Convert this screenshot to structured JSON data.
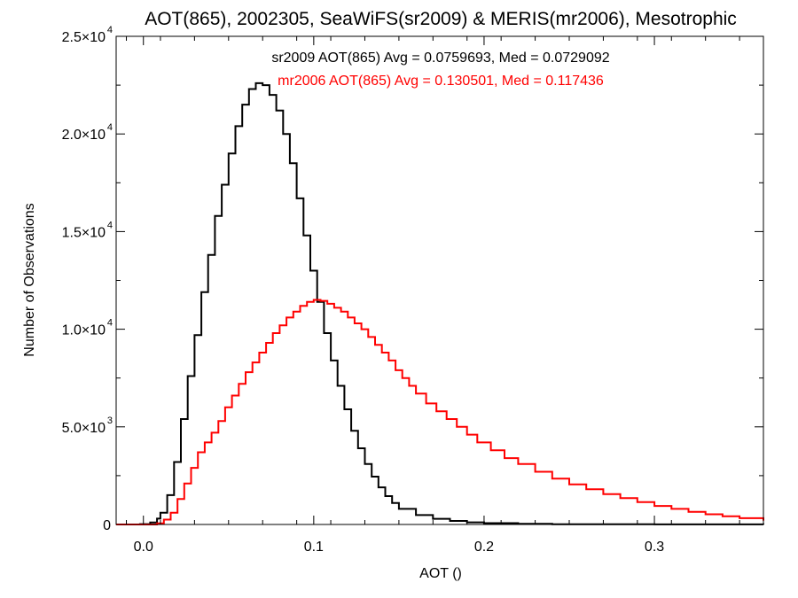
{
  "chart_data": {
    "type": "histogram-step",
    "title": "AOT(865), 2002305, SeaWiFS(sr2009) & MERIS(mr2006), Mesotrophic",
    "xlabel": "AOT ()",
    "ylabel": "Number of Observations",
    "xlim": [
      -0.016,
      0.364
    ],
    "ylim": [
      0,
      25000
    ],
    "x_ticks": [
      {
        "value": 0.0,
        "label": "0.0"
      },
      {
        "value": 0.1,
        "label": "0.1"
      },
      {
        "value": 0.2,
        "label": "0.2"
      },
      {
        "value": 0.3,
        "label": "0.3"
      }
    ],
    "y_ticks": [
      {
        "value": 0,
        "mant": "0",
        "exp": ""
      },
      {
        "value": 5000,
        "mant": "5.0×10",
        "exp": "3"
      },
      {
        "value": 10000,
        "mant": "1.0×10",
        "exp": "4"
      },
      {
        "value": 15000,
        "mant": "1.5×10",
        "exp": "4"
      },
      {
        "value": 20000,
        "mant": "2.0×10",
        "exp": "4"
      },
      {
        "value": 25000,
        "mant": "2.5×10",
        "exp": "4"
      }
    ],
    "series": [
      {
        "name": "sr2009",
        "color": "#000000",
        "x": [
          -0.016,
          -0.002,
          0.004,
          0.008,
          0.01,
          0.014,
          0.018,
          0.022,
          0.026,
          0.03,
          0.034,
          0.038,
          0.042,
          0.046,
          0.05,
          0.054,
          0.058,
          0.062,
          0.066,
          0.07,
          0.074,
          0.078,
          0.082,
          0.086,
          0.09,
          0.094,
          0.098,
          0.102,
          0.106,
          0.11,
          0.114,
          0.118,
          0.122,
          0.126,
          0.13,
          0.134,
          0.138,
          0.142,
          0.146,
          0.15,
          0.16,
          0.17,
          0.18,
          0.19,
          0.2,
          0.22,
          0.24,
          0.26,
          0.3,
          0.364
        ],
        "y": [
          0,
          20,
          100,
          300,
          600,
          1500,
          3200,
          5400,
          7600,
          9700,
          11900,
          13800,
          15800,
          17400,
          19000,
          20400,
          21500,
          22300,
          22600,
          22500,
          22000,
          21200,
          20000,
          18500,
          16700,
          14800,
          13000,
          11400,
          9800,
          8400,
          7100,
          5900,
          4800,
          3900,
          3100,
          2450,
          1900,
          1450,
          1100,
          800,
          480,
          290,
          180,
          110,
          70,
          30,
          15,
          8,
          3,
          0
        ],
        "stats": "sr2009 AOT(865) Avg = 0.0759693, Med = 0.0729092"
      },
      {
        "name": "mr2006",
        "color": "#ff0000",
        "x": [
          -0.016,
          0.0,
          0.008,
          0.012,
          0.016,
          0.02,
          0.024,
          0.028,
          0.032,
          0.036,
          0.04,
          0.044,
          0.048,
          0.052,
          0.056,
          0.06,
          0.064,
          0.068,
          0.072,
          0.076,
          0.08,
          0.084,
          0.088,
          0.092,
          0.096,
          0.1,
          0.104,
          0.108,
          0.112,
          0.116,
          0.12,
          0.124,
          0.128,
          0.132,
          0.136,
          0.14,
          0.144,
          0.148,
          0.152,
          0.156,
          0.16,
          0.166,
          0.172,
          0.178,
          0.184,
          0.19,
          0.196,
          0.204,
          0.212,
          0.22,
          0.23,
          0.24,
          0.25,
          0.26,
          0.27,
          0.28,
          0.29,
          0.3,
          0.31,
          0.32,
          0.33,
          0.34,
          0.35,
          0.364
        ],
        "y": [
          0,
          0,
          60,
          250,
          600,
          1300,
          2100,
          2900,
          3700,
          4200,
          4700,
          5300,
          6000,
          6600,
          7200,
          7800,
          8300,
          8800,
          9300,
          9800,
          10200,
          10600,
          10900,
          11200,
          11400,
          11500,
          11450,
          11300,
          11100,
          10900,
          10600,
          10300,
          10000,
          9600,
          9200,
          8800,
          8400,
          7900,
          7500,
          7100,
          6700,
          6200,
          5800,
          5400,
          5000,
          4600,
          4200,
          3800,
          3400,
          3100,
          2700,
          2350,
          2050,
          1800,
          1550,
          1350,
          1150,
          950,
          800,
          650,
          520,
          420,
          320,
          200
        ],
        "stats": "mr2006 AOT(865) Avg = 0.130501, Med = 0.117436"
      }
    ],
    "legend": "top-center",
    "grid": false
  }
}
